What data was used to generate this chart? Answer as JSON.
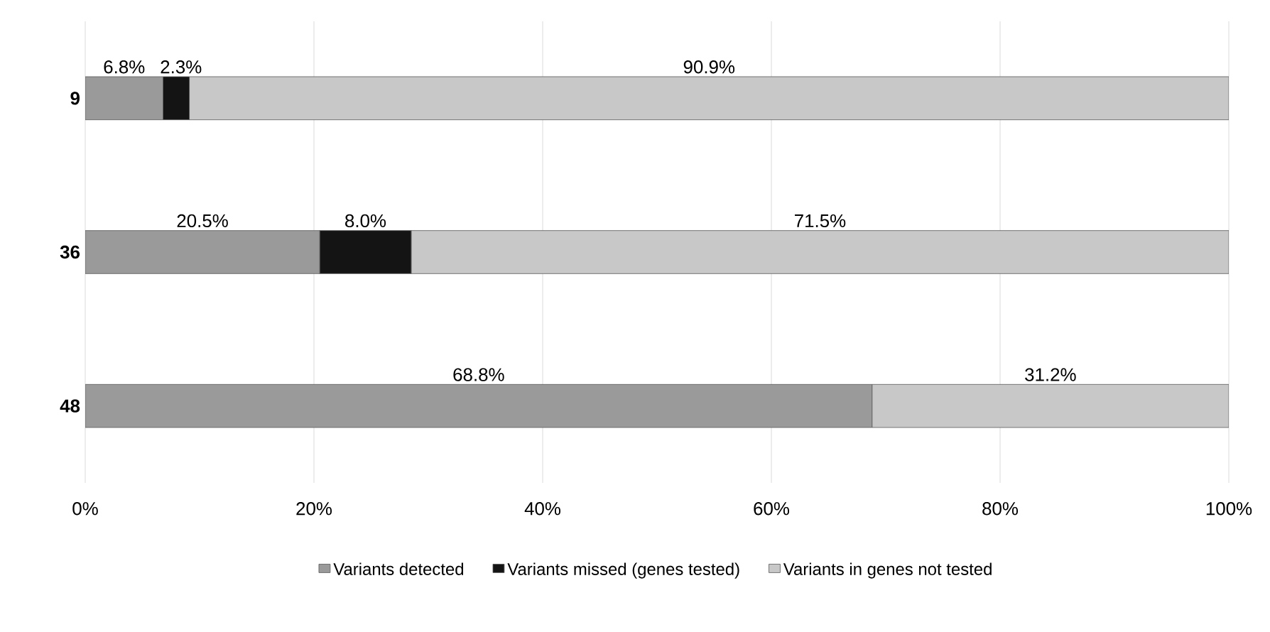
{
  "chart_data": {
    "type": "bar",
    "orientation": "horizontal",
    "stacked": true,
    "categories": [
      "9",
      "36",
      "48"
    ],
    "series": [
      {
        "name": "Variants detected",
        "color": "#9a9a9a",
        "values": [
          6.8,
          20.5,
          68.8
        ],
        "value_labels": [
          "6.8%",
          "20.5%",
          "68.8%"
        ]
      },
      {
        "name": "Variants missed (genes tested)",
        "color": "#141414",
        "values": [
          2.3,
          8.0,
          0
        ],
        "value_labels": [
          "2.3%",
          "8.0%",
          null
        ]
      },
      {
        "name": "Variants in genes not tested",
        "color": "#c8c8c8",
        "values": [
          90.9,
          71.5,
          31.2
        ],
        "value_labels": [
          "90.9%",
          "71.5%",
          "31.2%"
        ]
      }
    ],
    "xlim": [
      0,
      100
    ],
    "xticks": [
      {
        "value": 0,
        "label": "0%"
      },
      {
        "value": 20,
        "label": "20%"
      },
      {
        "value": 40,
        "label": "40%"
      },
      {
        "value": 60,
        "label": "60%"
      },
      {
        "value": 80,
        "label": "80%"
      },
      {
        "value": 100,
        "label": "100%"
      }
    ],
    "grid": "x",
    "legend": "bottom"
  }
}
